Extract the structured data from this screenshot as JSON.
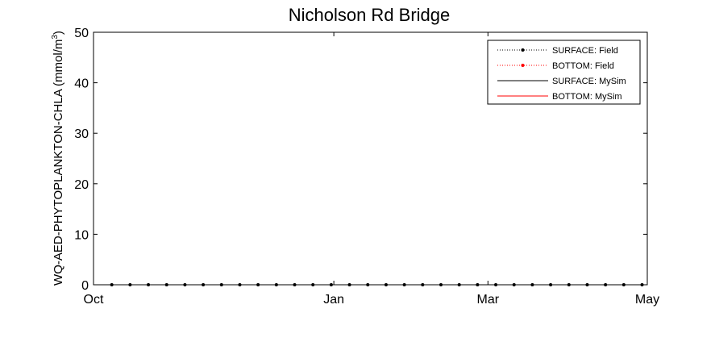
{
  "chart_data": {
    "type": "line",
    "title": "Nicholson Rd Bridge",
    "xlabel": "",
    "ylabel": "WQ-AED-PHYTOPLANKTON-CHLA (mmol/m",
    "ylabel_superscript": "3",
    "ylabel_close": ")",
    "ylim": [
      0,
      50
    ],
    "yticks": [
      0,
      10,
      20,
      30,
      40,
      50
    ],
    "xlim": [
      "Oct 1",
      "May 1"
    ],
    "xticks": [
      {
        "label": "Oct",
        "date": "Oct 1"
      },
      {
        "label": "Jan",
        "date": "Jan 1"
      },
      {
        "label": "Mar",
        "date": "Mar 1"
      },
      {
        "label": "May",
        "date": "May 1"
      }
    ],
    "grid": false,
    "legend_position": "top-right",
    "series": [
      {
        "name": "SURFACE: Field",
        "color": "#000000",
        "style": "dotted-with-markers",
        "x": [
          "Oct 8",
          "Oct 15",
          "Oct 22",
          "Oct 29",
          "Nov 5",
          "Nov 12",
          "Nov 19",
          "Nov 26",
          "Dec 3",
          "Dec 10",
          "Dec 17",
          "Dec 24",
          "Dec 31",
          "Jan 7",
          "Jan 14",
          "Jan 21",
          "Jan 28",
          "Feb 4",
          "Feb 11",
          "Feb 18",
          "Feb 25",
          "Mar 4",
          "Mar 11",
          "Mar 18",
          "Mar 25",
          "Apr 1",
          "Apr 8",
          "Apr 15",
          "Apr 22",
          "Apr 29"
        ],
        "values": [
          0,
          0,
          0,
          0,
          0,
          0,
          0,
          0,
          0,
          0,
          0,
          0,
          0,
          0,
          0,
          0,
          0,
          0,
          0,
          0,
          0,
          0,
          0,
          0,
          0,
          0,
          0,
          0,
          0,
          0
        ]
      },
      {
        "name": "BOTTOM: Field",
        "color": "#ff0000",
        "style": "dotted-with-markers",
        "x": [],
        "values": []
      },
      {
        "name": "SURFACE: MySim",
        "color": "#000000",
        "style": "solid",
        "x": [],
        "values": []
      },
      {
        "name": "BOTTOM: MySim",
        "color": "#ff0000",
        "style": "solid",
        "x": [],
        "values": []
      }
    ]
  }
}
